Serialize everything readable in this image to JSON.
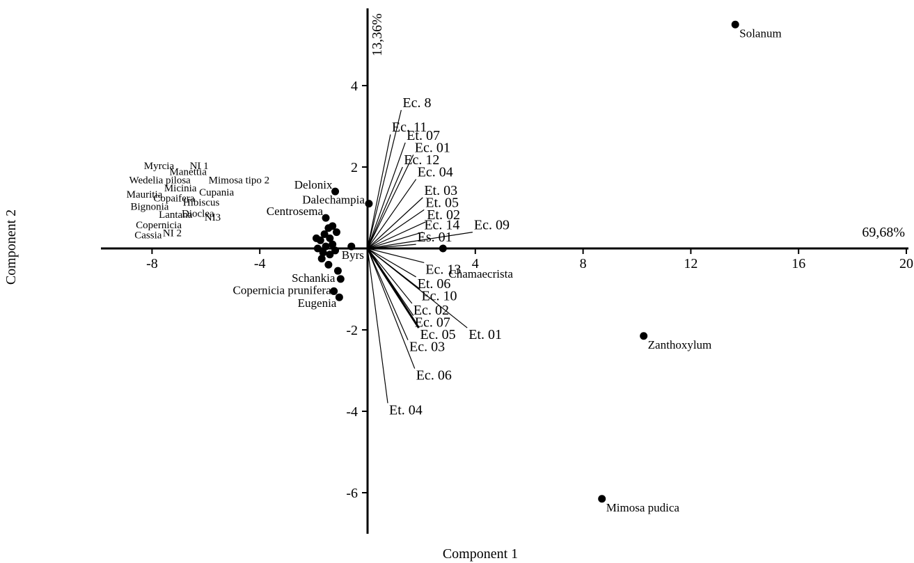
{
  "chart_data": {
    "type": "scatter",
    "subtype": "biplot",
    "xlabel": "Component 1",
    "ylabel": "Component 2",
    "x_variance_label": "69,68%",
    "y_variance_label": "13,36%",
    "xlim": [
      -10,
      20
    ],
    "ylim": [
      -7.2,
      6.1
    ],
    "x_ticks": [
      {
        "value": -8,
        "label": "-8"
      },
      {
        "value": -4,
        "label": "-4"
      },
      {
        "value": 4,
        "label": "4"
      },
      {
        "value": 8,
        "label": "8"
      },
      {
        "value": 12,
        "label": "12"
      },
      {
        "value": 16,
        "label": "16"
      },
      {
        "value": 20,
        "label": "20"
      }
    ],
    "y_ticks": [
      {
        "value": 4,
        "label": "4"
      },
      {
        "value": 2,
        "label": "2"
      },
      {
        "value": -2,
        "label": "-2"
      },
      {
        "value": -4,
        "label": "-4"
      },
      {
        "value": -6,
        "label": "-6"
      }
    ],
    "grid": false,
    "legend": "none",
    "point_color": "#000000",
    "vectors": [
      {
        "name": "Ec. 8",
        "x": 1.25,
        "y": 3.4
      },
      {
        "name": "Ec. 11",
        "x": 0.85,
        "y": 2.8
      },
      {
        "name": "Et. 07",
        "x": 1.4,
        "y": 2.6
      },
      {
        "name": "Ec. 01",
        "x": 1.7,
        "y": 2.3
      },
      {
        "name": "Ec. 12",
        "x": 1.3,
        "y": 2.0
      },
      {
        "name": "Ec. 04",
        "x": 1.8,
        "y": 1.7
      },
      {
        "name": "Et. 03",
        "x": 2.05,
        "y": 1.25
      },
      {
        "name": "Et. 05",
        "x": 2.1,
        "y": 0.95
      },
      {
        "name": "Et. 02",
        "x": 2.15,
        "y": 0.65
      },
      {
        "name": "Ec. 14",
        "x": 2.05,
        "y": 0.4
      },
      {
        "name": "Ec. 09",
        "x": 3.9,
        "y": 0.4
      },
      {
        "name": "Es. 01",
        "x": 1.8,
        "y": 0.1
      },
      {
        "name": "Ec. 13",
        "x": 2.1,
        "y": -0.35
      },
      {
        "name": "Et. 06",
        "x": 1.8,
        "y": -0.7
      },
      {
        "name": "Ec. 10",
        "x": 1.95,
        "y": -1.0
      },
      {
        "name": "Ec. 02",
        "x": 1.65,
        "y": -1.35
      },
      {
        "name": "Ec. 07",
        "x": 1.7,
        "y": -1.65
      },
      {
        "name": "Ec. 05",
        "x": 1.9,
        "y": -1.95
      },
      {
        "name": "Et. 01",
        "x": 3.7,
        "y": -1.95
      },
      {
        "name": "Ec. 03",
        "x": 1.5,
        "y": -2.25
      },
      {
        "name": "Ec. 06",
        "x": 1.75,
        "y": -2.95
      },
      {
        "name": "Et. 04",
        "x": 0.75,
        "y": -3.8
      }
    ],
    "points": [
      {
        "name": "Solanum",
        "x": 13.65,
        "y": 5.5
      },
      {
        "name": "Zanthoxylum",
        "x": 10.25,
        "y": -2.15
      },
      {
        "name": "Mimosa pudica",
        "x": 8.7,
        "y": -6.15
      },
      {
        "name": "Chamaecrista",
        "x": 2.8,
        "y": 0.0
      },
      {
        "name": "Delonix",
        "x": -1.2,
        "y": 1.4
      },
      {
        "name": "Dalechampia",
        "x": 0.05,
        "y": 1.1
      },
      {
        "name": "Centrosema",
        "x": -1.55,
        "y": 0.75
      },
      {
        "name": "Byrs",
        "x": -0.6,
        "y": 0.05
      },
      {
        "name": "Schankia",
        "x": -1.1,
        "y": -0.55
      },
      {
        "name": "Copernicia prunifera",
        "x": -1.25,
        "y": -1.05
      },
      {
        "name": "Eugenia",
        "x": -1.05,
        "y": -1.2
      },
      {
        "name": "",
        "x": -1.0,
        "y": -0.75
      },
      {
        "name": "",
        "x": -1.45,
        "y": 0.5
      },
      {
        "name": "",
        "x": -1.3,
        "y": 0.55
      },
      {
        "name": "",
        "x": -1.15,
        "y": 0.4
      },
      {
        "name": "",
        "x": -1.6,
        "y": 0.35
      },
      {
        "name": "",
        "x": -1.4,
        "y": 0.25
      },
      {
        "name": "",
        "x": -1.75,
        "y": 0.2
      },
      {
        "name": "",
        "x": -1.3,
        "y": 0.1
      },
      {
        "name": "",
        "x": -1.55,
        "y": 0.05
      },
      {
        "name": "",
        "x": -1.85,
        "y": 0.0
      },
      {
        "name": "",
        "x": -1.65,
        "y": -0.1
      },
      {
        "name": "",
        "x": -1.4,
        "y": -0.15
      },
      {
        "name": "",
        "x": -1.7,
        "y": -0.25
      },
      {
        "name": "",
        "x": -1.45,
        "y": -0.4
      },
      {
        "name": "",
        "x": -1.2,
        "y": -0.05
      },
      {
        "name": "",
        "x": -1.9,
        "y": 0.25
      }
    ],
    "outer_labels": [
      {
        "name": "Myrcia",
        "x": -8.3,
        "y": 1.95
      },
      {
        "name": "Manettia",
        "x": -7.35,
        "y": 1.8
      },
      {
        "name": "NI 1",
        "x": -6.6,
        "y": 1.95
      },
      {
        "name": "Wedelia pilosa",
        "x": -8.85,
        "y": 1.6
      },
      {
        "name": "Micinia",
        "x": -7.55,
        "y": 1.4
      },
      {
        "name": "Mimosa tipo 2",
        "x": -5.9,
        "y": 1.6
      },
      {
        "name": "Mauritia",
        "x": -8.95,
        "y": 1.25
      },
      {
        "name": "Cupania",
        "x": -6.25,
        "y": 1.3
      },
      {
        "name": "Copaifera",
        "x": -7.95,
        "y": 1.15
      },
      {
        "name": "Hibiscus",
        "x": -6.85,
        "y": 1.05
      },
      {
        "name": "Bignonia",
        "x": -8.8,
        "y": 0.95
      },
      {
        "name": "Lantana",
        "x": -7.75,
        "y": 0.75
      },
      {
        "name": "Dioclea",
        "x": -6.9,
        "y": 0.78
      },
      {
        "name": "NI3",
        "x": -6.05,
        "y": 0.68
      },
      {
        "name": "Copernicia",
        "x": -8.6,
        "y": 0.5
      },
      {
        "name": "NI 2",
        "x": -7.6,
        "y": 0.3
      },
      {
        "name": "Cassia",
        "x": -8.65,
        "y": 0.25
      }
    ]
  }
}
